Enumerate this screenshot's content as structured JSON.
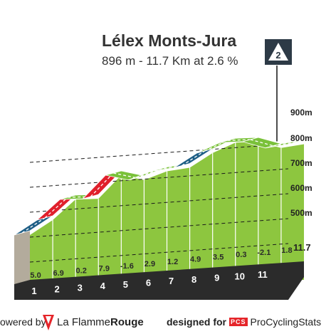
{
  "header": {
    "title": "Lélex Monts-Jura",
    "subtitle": "896 m - 11.7 Km at 2.6 %",
    "category_badge": "2"
  },
  "chart_data": {
    "type": "area",
    "title": "Lélex Monts-Jura",
    "subtitle": "896 m - 11.7 Km at 2.6 %",
    "x_unit": "km",
    "y_unit": "m",
    "ylim": [
      400,
      900
    ],
    "xlim": [
      0,
      11.7
    ],
    "y_ticks": [
      "500m",
      "600m",
      "700m",
      "800m",
      "900m"
    ],
    "y_tick_values": [
      500,
      600,
      700,
      800,
      900
    ],
    "x_end_label": "11.7",
    "km_labels": [
      "1",
      "2",
      "3",
      "4",
      "5",
      "6",
      "7",
      "8",
      "9",
      "10",
      "11"
    ],
    "gradients": [
      "5.0",
      "6.9",
      "0.2",
      "7.9",
      "-1.6",
      "2.9",
      "1.2",
      "4.9",
      "3.5",
      "0.3",
      "-2.1",
      "1.8"
    ],
    "gradient_values": [
      5.0,
      6.9,
      0.2,
      7.9,
      -1.6,
      2.9,
      1.2,
      4.9,
      3.5,
      0.3,
      -2.1,
      1.8
    ],
    "segment_colors": [
      "#1f5f86",
      "#e0202c",
      "#7ac13a",
      "#e0202c",
      "#7ac13a",
      "#7ac13a",
      "#7ac13a",
      "#1f5f86",
      "#7ac13a",
      "#7ac13a",
      "#7ac13a",
      "#7ac13a"
    ],
    "summit_altitude_m": 896,
    "grid": true
  },
  "colors": {
    "climb_fill": "#8dc63f",
    "climb_top": "#66b032",
    "steep_red": "#e0202c",
    "blue_segment": "#1f5f86",
    "base_band": "#2b2b2b",
    "side_wall": "#b3ab9c",
    "badge_bg": "#2d3a46",
    "brand_red": "#e5252a"
  },
  "footer": {
    "powered_prefix": "owered by",
    "brand_name_plain": "La Flamme",
    "brand_name_bold": "Rouge",
    "designed_for": "designed for",
    "pcs_logo": "PCS",
    "pcs_name": "ProCyclingStats"
  }
}
